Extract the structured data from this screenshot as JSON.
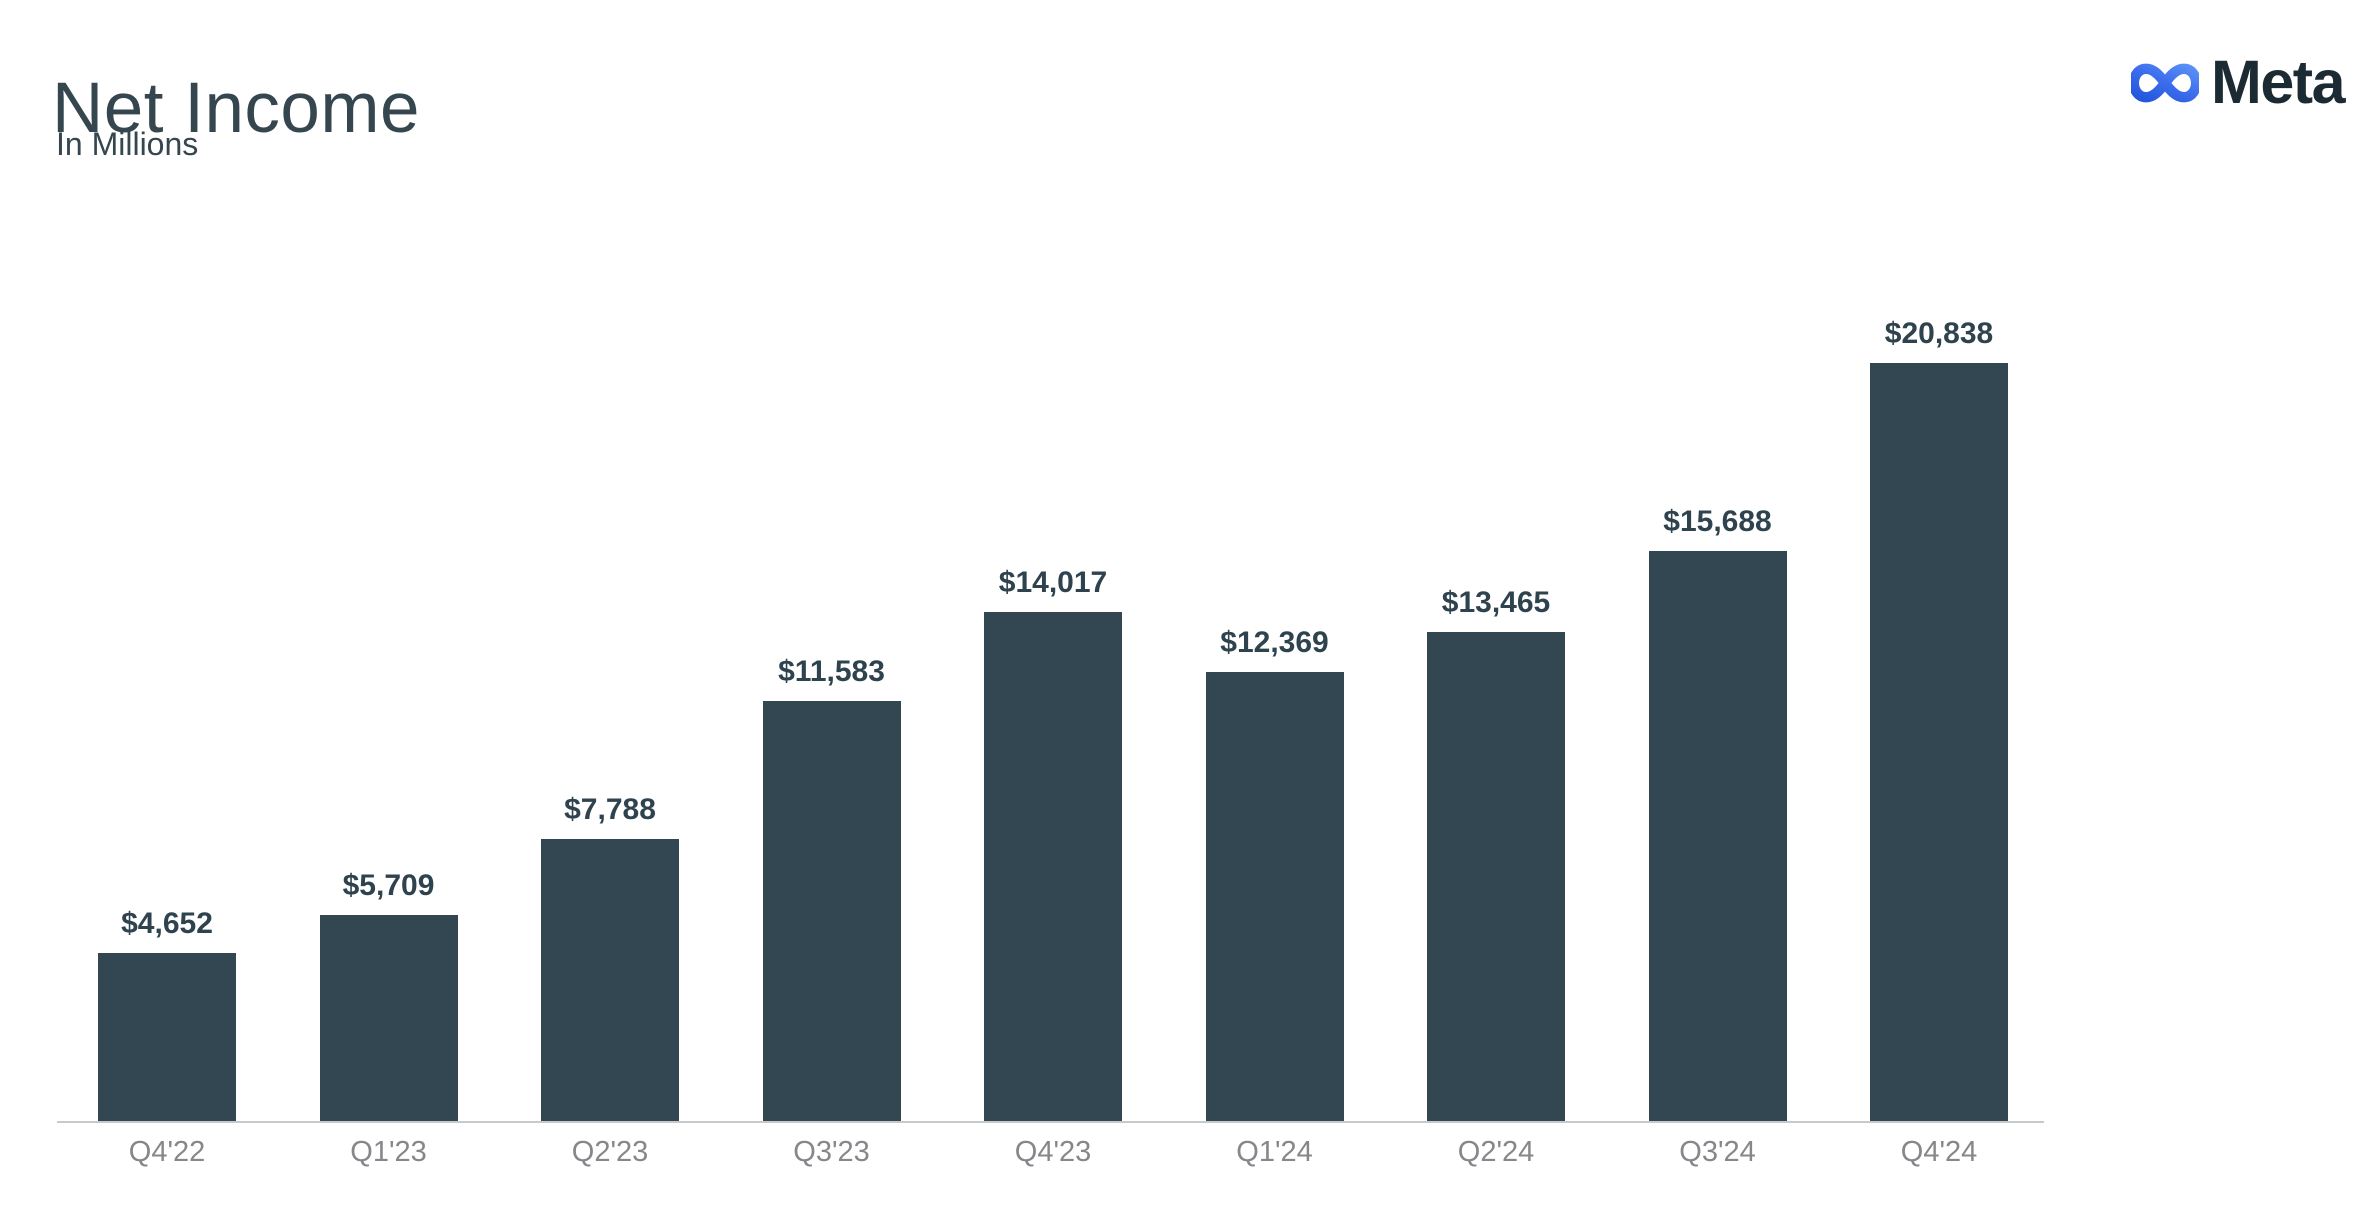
{
  "header": {
    "title": "Net Income",
    "subtitle": "In Millions",
    "brand": "Meta"
  },
  "icons": {
    "brand": "meta-infinity-icon"
  },
  "colors": {
    "text_dark": "#35464F",
    "bar": "#334753",
    "value_label": "#2F434F",
    "axis_label": "#85878A",
    "axis_line": "#C8C9CA",
    "wordmark": "#1C2B33",
    "bg": "#FFFFFF",
    "logo_gradient": [
      "#2356DD",
      "#3B6CEC",
      "#5A8FF7"
    ]
  },
  "chart_data": {
    "type": "bar",
    "title": "Net Income",
    "subtitle": "In Millions",
    "unit": "USD millions",
    "categories": [
      "Q4'22",
      "Q1'23",
      "Q2'23",
      "Q3'23",
      "Q4'23",
      "Q1'24",
      "Q2'24",
      "Q3'24",
      "Q4'24"
    ],
    "values": [
      4652,
      5709,
      7788,
      11583,
      14017,
      12369,
      13465,
      15688,
      20838
    ],
    "display_values": [
      "$4,652",
      "$5,709",
      "$7,788",
      "$11,583",
      "$14,017",
      "$12,369",
      "$13,465",
      "$15,688",
      "$20,838"
    ],
    "ylim": [
      0,
      20838
    ],
    "grid": false,
    "legend": false,
    "value_labels": "above bars",
    "baseline_axis": "x only"
  }
}
